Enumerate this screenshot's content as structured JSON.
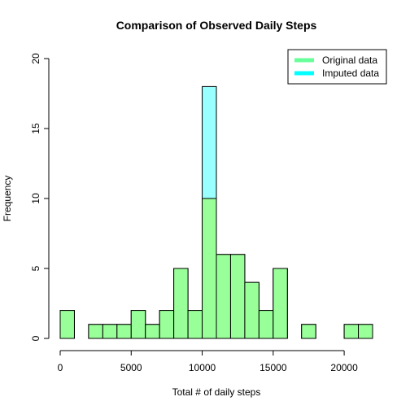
{
  "chart_data": {
    "type": "bar",
    "title": "Comparison of Observed Daily Steps",
    "xlabel": "Total # of daily steps",
    "ylabel": "Frequency",
    "xlim": [
      0,
      22000
    ],
    "ylim": [
      0,
      20
    ],
    "bin_width": 1000,
    "x_ticks": [
      0,
      5000,
      10000,
      15000,
      20000
    ],
    "x_tick_labels": [
      "0",
      "5000",
      "10000",
      "15000",
      "20000"
    ],
    "y_ticks": [
      0,
      5,
      10,
      15,
      20
    ],
    "y_tick_labels": [
      "0",
      "5",
      "10",
      "15",
      "20"
    ],
    "bin_edges": [
      0,
      1000,
      2000,
      3000,
      4000,
      5000,
      6000,
      7000,
      8000,
      9000,
      10000,
      11000,
      12000,
      13000,
      14000,
      15000,
      16000,
      17000,
      18000,
      19000,
      20000,
      21000,
      22000
    ],
    "series": [
      {
        "name": "Imputed data",
        "color": "#99FFFF",
        "values": [
          2,
          0,
          1,
          1,
          1,
          2,
          1,
          2,
          5,
          2,
          18,
          6,
          6,
          4,
          2,
          5,
          0,
          1,
          0,
          0,
          1,
          1
        ]
      },
      {
        "name": "Original data",
        "color": "#99FF99",
        "values": [
          2,
          0,
          1,
          1,
          1,
          2,
          1,
          2,
          5,
          2,
          10,
          6,
          6,
          4,
          2,
          5,
          0,
          1,
          0,
          0,
          1,
          1
        ]
      }
    ],
    "legend": {
      "position": "top-right",
      "entries": [
        {
          "label": "Original data",
          "color": "#66FF99"
        },
        {
          "label": "Imputed data",
          "color": "#00FFFF"
        }
      ]
    }
  }
}
